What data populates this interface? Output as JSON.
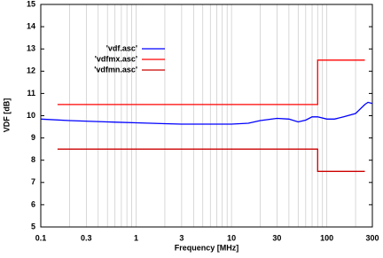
{
  "chart_data": {
    "type": "line",
    "x_label": "Frequency [MHz]",
    "y_label": "VDF [dB]",
    "log_x": true,
    "grid": true,
    "legend": "top-left",
    "xlim": [
      0.1,
      300
    ],
    "ylim": [
      5,
      15
    ],
    "xticks": [
      0.1,
      0.3,
      1,
      3,
      10,
      30,
      100,
      300
    ],
    "x_minor_ticks": [
      0.2,
      0.4,
      0.5,
      0.6,
      0.7,
      0.8,
      0.9,
      2,
      4,
      5,
      6,
      7,
      8,
      9,
      20,
      40,
      50,
      60,
      70,
      80,
      90,
      200
    ],
    "yticks": [
      5,
      6,
      7,
      8,
      9,
      10,
      11,
      12,
      13,
      14,
      15
    ],
    "series": [
      {
        "name": "'vdf.asc'",
        "color": "#0000ff",
        "x": [
          0.1,
          0.2,
          0.5,
          1,
          2,
          3,
          5,
          10,
          15,
          20,
          30,
          40,
          50,
          60,
          70,
          80,
          100,
          120,
          150,
          200,
          250,
          270,
          300
        ],
        "values": [
          9.85,
          9.78,
          9.72,
          9.68,
          9.64,
          9.62,
          9.62,
          9.62,
          9.66,
          9.78,
          9.88,
          9.85,
          9.72,
          9.8,
          9.95,
          9.95,
          9.85,
          9.85,
          9.95,
          10.1,
          10.5,
          10.6,
          10.55
        ]
      },
      {
        "name": "'vdfmx.asc'",
        "color": "#ff0000",
        "x": [
          0.15,
          80,
          80,
          250
        ],
        "values": [
          10.5,
          10.5,
          12.5,
          12.5
        ]
      },
      {
        "name": "'vdfmn.asc'",
        "color": "#cc0000",
        "x": [
          0.15,
          80,
          80,
          250
        ],
        "values": [
          8.5,
          8.5,
          7.5,
          7.5
        ]
      }
    ]
  }
}
